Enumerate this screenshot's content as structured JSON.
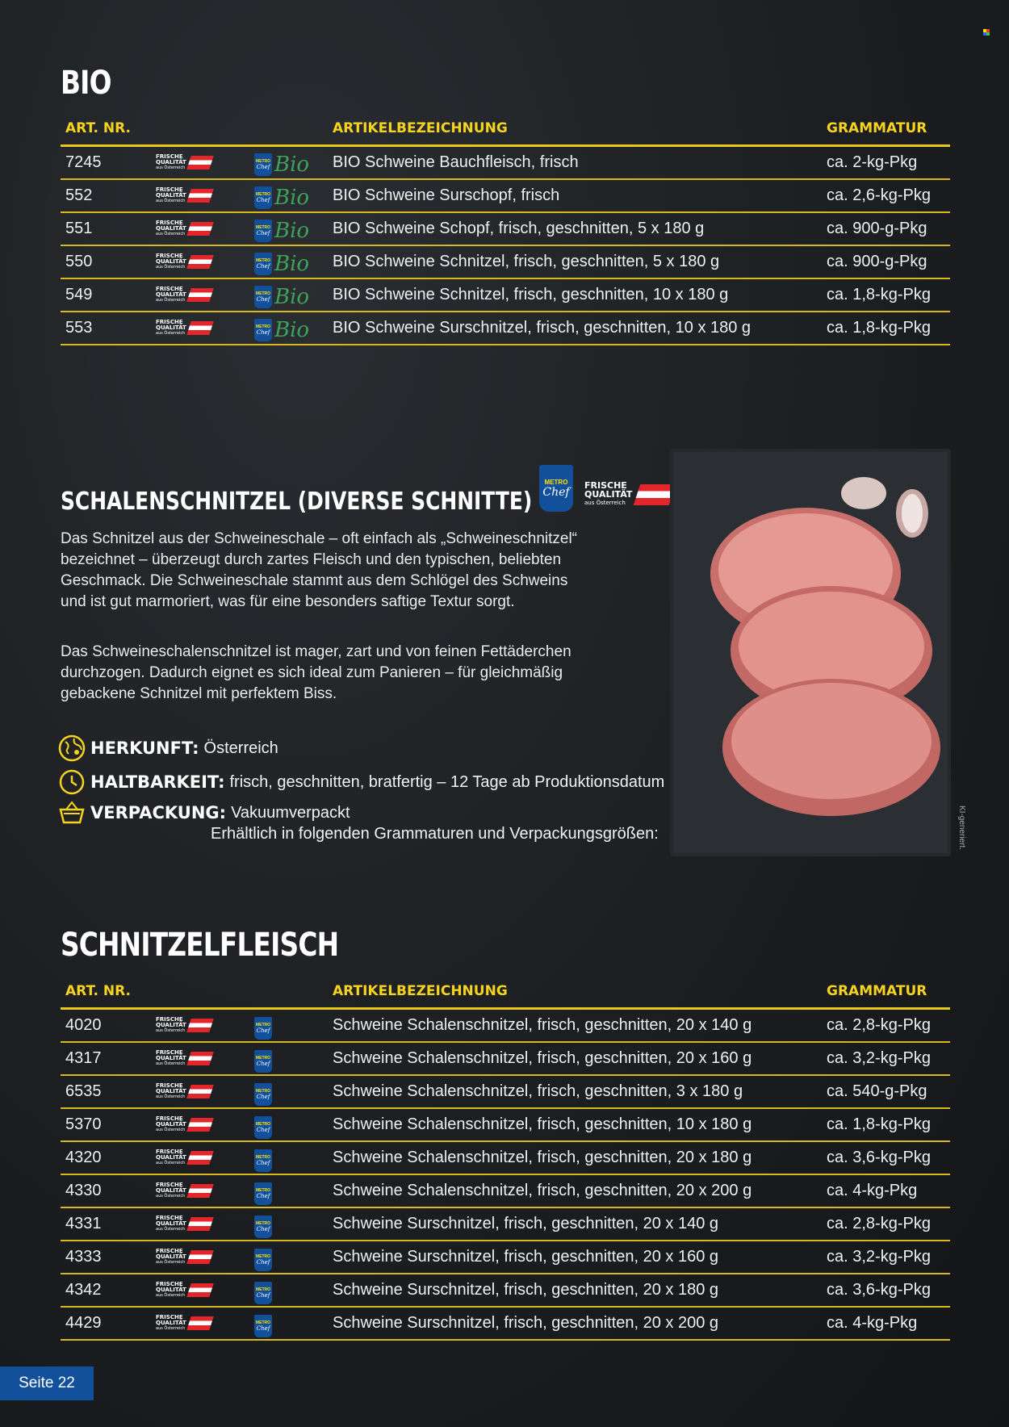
{
  "bio": {
    "title": "BIO",
    "headers": {
      "nr": "ART. NR.",
      "name": "ARTIKELBEZEICHNUNG",
      "weight": "GRAMMATUR"
    },
    "rows": [
      {
        "nr": "7245",
        "name": "BIO Schweine Bauchfleisch, frisch",
        "weight": "ca. 2-kg-Pkg"
      },
      {
        "nr": "552",
        "name": "BIO Schweine Surschopf, frisch",
        "weight": "ca. 2,6-kg-Pkg"
      },
      {
        "nr": "551",
        "name": "BIO Schweine Schopf, frisch, geschnitten, 5 x 180 g",
        "weight": "ca. 900-g-Pkg"
      },
      {
        "nr": "550",
        "name": "BIO Schweine Schnitzel, frisch, geschnitten, 5 x 180 g",
        "weight": "ca. 900-g-Pkg"
      },
      {
        "nr": "549",
        "name": "BIO Schweine Schnitzel, frisch, geschnitten, 10 x 180 g",
        "weight": "ca. 1,8-kg-Pkg"
      },
      {
        "nr": "553",
        "name": "BIO Schweine Surschnitzel, frisch, geschnitten, 10 x 180 g",
        "weight": "ca. 1,8-kg-Pkg"
      }
    ]
  },
  "labels": {
    "fq_line1": "FRISCHE",
    "fq_line2": "QUALITÄT",
    "fq_line3": "aus Österreich",
    "metro": "METRO",
    "chef": "Chef",
    "bio": "Bio"
  },
  "feature": {
    "title": "SCHALENSCHNITZEL (DIVERSE SCHNITTE)",
    "para1": "Das Schnitzel aus der Schweineschale – oft einfach als „Schweineschnitzel“ bezeichnet – überzeugt durch zartes Fleisch und den typischen, beliebten Geschmack. Die Schweineschale stammt aus dem Schlögel des Schweins und ist gut marmoriert, was für eine besonders saftige Textur sorgt.",
    "para2": "Das Schweineschalenschnitzel ist mager, zart und von feinen Fettäderchen durchzogen. Dadurch eignet es sich ideal zum Panieren – für gleichmäßig gebackene Schnitzel mit perfektem Biss.",
    "origin_label": "HERKUNFT:",
    "origin_value": "Österreich",
    "shelf_label": "HALTBARKEIT:",
    "shelf_value": "frisch, geschnitten, bratfertig – 12 Tage ab Produktionsdatum",
    "pack_label": "VERPACKUNG:",
    "pack_value": "Vakuumverpackt",
    "availability": "Erhältlich in folgenden Grammaturen und Verpackungsgrößen:",
    "ai_note": "KI-generiert."
  },
  "schnitzel": {
    "title": "SCHNITZELFLEISCH",
    "headers": {
      "nr": "ART. NR.",
      "name": "ARTIKELBEZEICHNUNG",
      "weight": "GRAMMATUR"
    },
    "rows": [
      {
        "nr": "4020",
        "name": "Schweine Schalenschnitzel, frisch, geschnitten, 20 x 140 g",
        "weight": "ca. 2,8-kg-Pkg"
      },
      {
        "nr": "4317",
        "name": "Schweine Schalenschnitzel, frisch, geschnitten, 20 x 160 g",
        "weight": "ca. 3,2-kg-Pkg"
      },
      {
        "nr": "6535",
        "name": "Schweine Schalenschnitzel, frisch, geschnitten, 3 x 180 g",
        "weight": "ca. 540-g-Pkg"
      },
      {
        "nr": "5370",
        "name": "Schweine Schalenschnitzel, frisch, geschnitten, 10 x 180 g",
        "weight": "ca. 1,8-kg-Pkg"
      },
      {
        "nr": "4320",
        "name": "Schweine Schalenschnitzel, frisch, geschnitten, 20 x 180 g",
        "weight": "ca. 3,6-kg-Pkg"
      },
      {
        "nr": "4330",
        "name": "Schweine Schalenschnitzel, frisch, geschnitten, 20 x 200 g",
        "weight": "ca. 4-kg-Pkg"
      },
      {
        "nr": "4331",
        "name": "Schweine Surschnitzel, frisch, geschnitten, 20 x 140 g",
        "weight": "ca. 2,8-kg-Pkg"
      },
      {
        "nr": "4333",
        "name": "Schweine Surschnitzel, frisch, geschnitten, 20 x 160 g",
        "weight": "ca. 3,2-kg-Pkg"
      },
      {
        "nr": "4342",
        "name": "Schweine Surschnitzel, frisch, geschnitten, 20 x 180 g",
        "weight": "ca. 3,6-kg-Pkg"
      },
      {
        "nr": "4429",
        "name": "Schweine Surschnitzel, frisch, geschnitten, 20 x 200 g",
        "weight": "ca. 4-kg-Pkg"
      }
    ]
  },
  "footer": {
    "page": "Seite 22"
  },
  "colors": {
    "accent": "#f5d31e",
    "metro_blue": "#12509b",
    "bio_green": "#3ea35a"
  }
}
